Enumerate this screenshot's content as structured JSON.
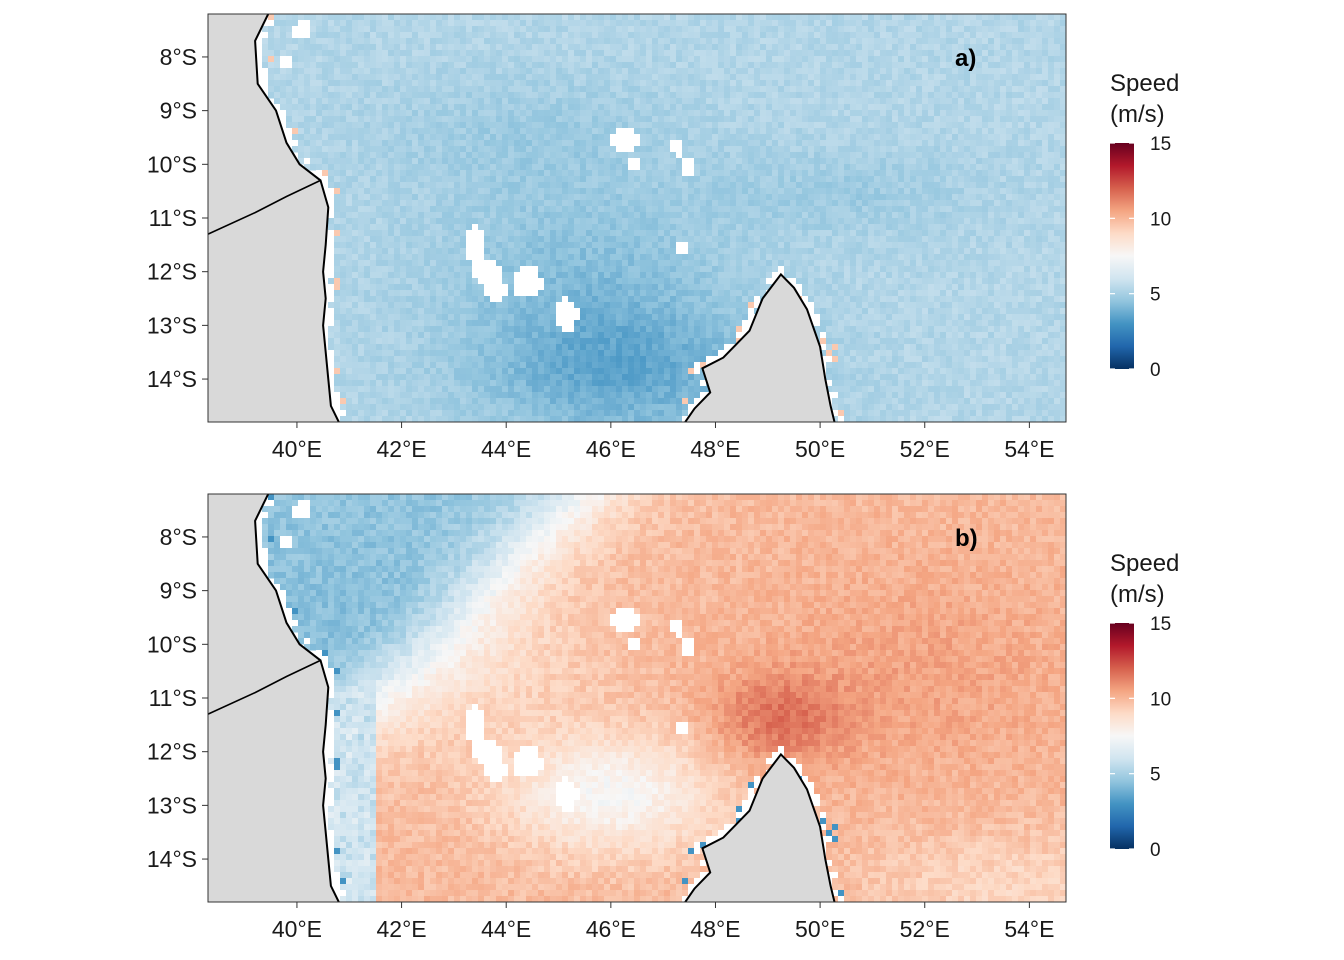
{
  "figure": {
    "colors": {
      "land": "#d9d9d9",
      "coast": "#000000",
      "missing": "#ffffff",
      "palette_RdBu": [
        "#053061",
        "#2166ac",
        "#4393c3",
        "#92c5de",
        "#d1e5f0",
        "#f7f7f7",
        "#fddbc7",
        "#f4a582",
        "#d6604d",
        "#b2182b",
        "#67001f"
      ]
    },
    "legend": {
      "title_line1": "Speed",
      "title_line2": "(m/s)",
      "ticks": [
        "0",
        "5",
        "10",
        "15"
      ],
      "range": [
        0,
        15
      ]
    },
    "panels": [
      {
        "id": "a",
        "label": "a)"
      },
      {
        "id": "b",
        "label": "b)"
      }
    ]
  },
  "chart_data": [
    {
      "type": "heatmap",
      "panel": "a)",
      "value_name": "Speed (m/s)",
      "xlim": [
        38.3,
        54.7
      ],
      "ylim": [
        -14.8,
        -7.2
      ],
      "x_ticks": [
        40,
        42,
        44,
        46,
        48,
        50,
        52,
        54
      ],
      "x_tick_labels": [
        "40°E",
        "42°E",
        "44°E",
        "46°E",
        "48°E",
        "50°E",
        "52°E",
        "54°E"
      ],
      "y_ticks": [
        -8,
        -9,
        -10,
        -11,
        -12,
        -13,
        -14
      ],
      "y_tick_labels": [
        "8°S",
        "9°S",
        "10°S",
        "11°S",
        "12°S",
        "13°S",
        "14°S"
      ],
      "field": {
        "typical_range": [
          3.5,
          5.5
        ],
        "min_region": "south-central near 46°E 14°S",
        "minimum": 3.0,
        "north_east_value": 5.3,
        "coastal_spots": 8
      },
      "colorscale": {
        "range": [
          0,
          15
        ],
        "midpoint": 7.5,
        "palette": "RdBu"
      }
    },
    {
      "type": "heatmap",
      "panel": "b)",
      "value_name": "Speed (m/s)",
      "xlim": [
        38.3,
        54.7
      ],
      "ylim": [
        -14.8,
        -7.2
      ],
      "x_ticks": [
        40,
        42,
        44,
        46,
        48,
        50,
        52,
        54
      ],
      "x_tick_labels": [
        "40°E",
        "42°E",
        "44°E",
        "46°E",
        "48°E",
        "50°E",
        "52°E",
        "54°E"
      ],
      "y_ticks": [
        -8,
        -9,
        -10,
        -11,
        -12,
        -13,
        -14
      ],
      "y_tick_labels": [
        "8°S",
        "9°S",
        "10°S",
        "11°S",
        "12°S",
        "13°S",
        "14°S"
      ],
      "field": {
        "west_range": [
          3.5,
          6.5
        ],
        "east_range": [
          8.5,
          12.5
        ],
        "maximum": 12.5,
        "max_region": "49°E 11.5°S",
        "minimum": 3.5,
        "min_region": "46°E 13°S"
      },
      "colorscale": {
        "range": [
          0,
          15
        ],
        "midpoint": 7.5,
        "palette": "RdBu"
      }
    }
  ]
}
